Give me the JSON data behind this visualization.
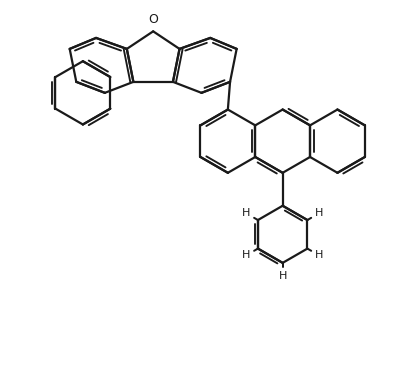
{
  "bg_color": "#ffffff",
  "line_color": "#1a1a1a",
  "line_width": 1.6,
  "figsize": [
    4.03,
    3.79
  ],
  "dpi": 100,
  "xlim": [
    0.0,
    8.5
  ],
  "ylim": [
    0.0,
    8.5
  ]
}
